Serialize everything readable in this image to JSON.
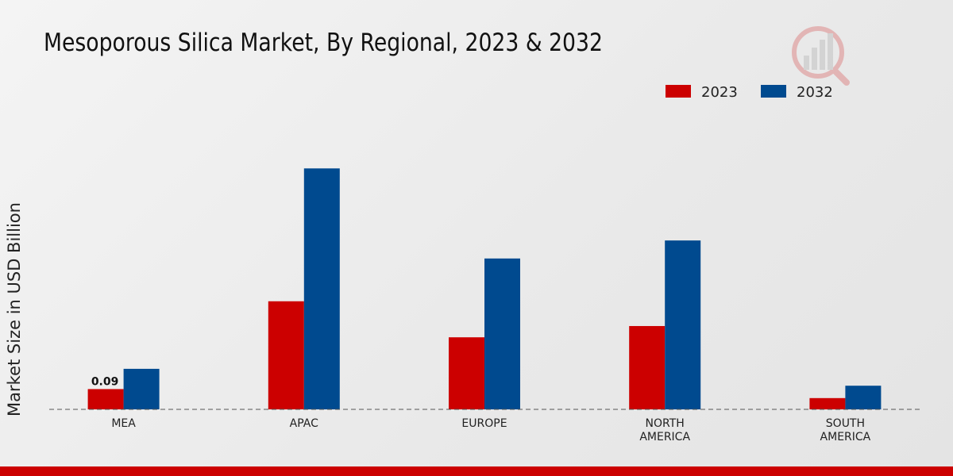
{
  "chart_data": {
    "type": "bar",
    "title": "Mesoporous Silica Market, By Regional, 2023 & 2032",
    "xlabel": "",
    "ylabel": "Market Size in USD Billion",
    "categories": [
      "MEA",
      "APAC",
      "EUROPE",
      "NORTH AMERICA",
      "SOUTH AMERICA"
    ],
    "category_lines": [
      [
        "MEA"
      ],
      [
        "APAC"
      ],
      [
        "EUROPE"
      ],
      [
        "NORTH",
        "AMERICA"
      ],
      [
        "SOUTH",
        "AMERICA"
      ]
    ],
    "series": [
      {
        "name": "2023",
        "color": "#cc0000",
        "values": [
          0.09,
          0.48,
          0.32,
          0.37,
          0.05
        ]
      },
      {
        "name": "2032",
        "color": "#004a8f",
        "values": [
          0.18,
          1.07,
          0.67,
          0.75,
          0.105
        ]
      }
    ],
    "data_labels": [
      {
        "series": 0,
        "index": 0,
        "text": "0.09"
      }
    ],
    "ylim": [
      0,
      1.3
    ],
    "legend_position": "top-right",
    "grid": false
  },
  "theme": {
    "bottom_bar_color": "#cc0000",
    "logo_color": "#cc0000"
  }
}
